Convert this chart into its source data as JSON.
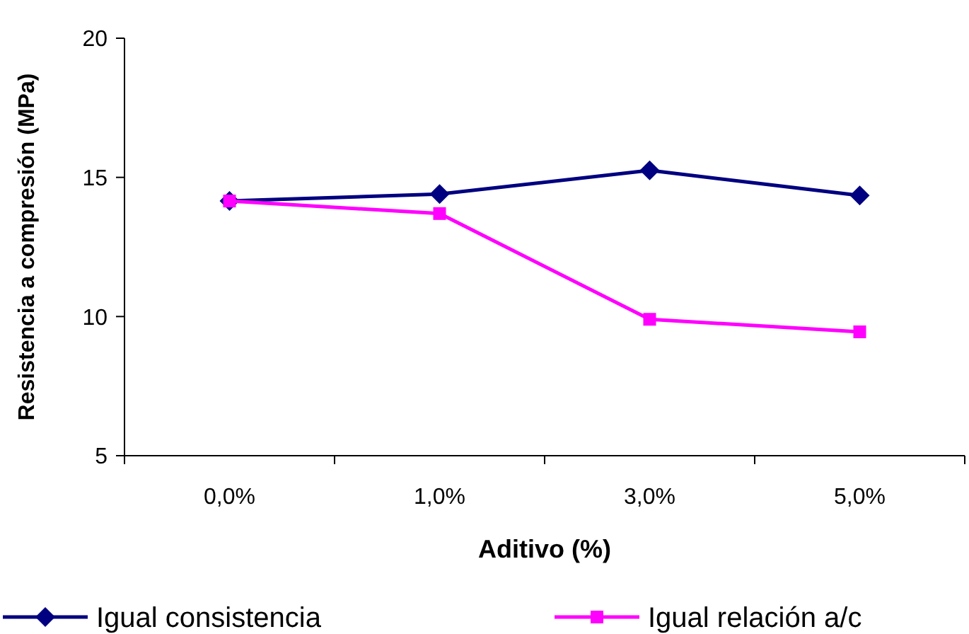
{
  "chart_data": {
    "type": "line",
    "xlabel": "Aditivo (%)",
    "ylabel": "Resistencia a compresión (MPa)",
    "categories": [
      "0,0%",
      "1,0%",
      "3,0%",
      "5,0%"
    ],
    "series": [
      {
        "name": "Igual consistencia",
        "color": "#000080",
        "marker": "diamond",
        "values": [
          14.15,
          14.4,
          15.25,
          14.35
        ]
      },
      {
        "name": "Igual relación a/c",
        "color": "#ff00ff",
        "marker": "square",
        "values": [
          14.15,
          13.7,
          9.9,
          9.45
        ]
      }
    ],
    "ylim": [
      5,
      20
    ],
    "yticks": [
      5,
      10,
      15,
      20
    ],
    "grid": false,
    "legend": "bottom",
    "line_style": "solid"
  }
}
